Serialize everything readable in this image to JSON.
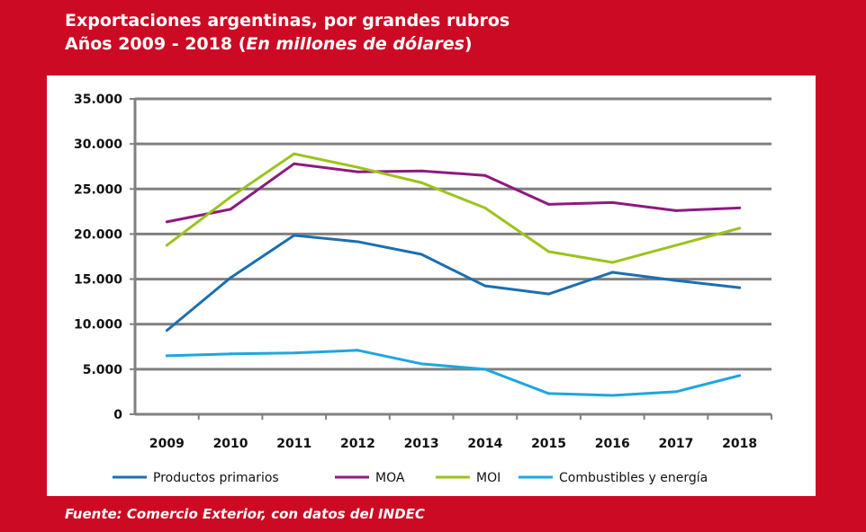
{
  "title_line1": "Exportaciones argentinas, por grandes rubros",
  "title_line2_prefix": "Años 2009 - 2018  (",
  "title_line2_italic": "En millones de dólares",
  "title_line2_suffix": ")",
  "source": "Fuente: Comercio Exterior, con datos del INDEC",
  "chart_data": {
    "type": "line",
    "title": "Exportaciones argentinas, por grandes rubros — Años 2009 - 2018 (En millones de dólares)",
    "categories": [
      "2009",
      "2010",
      "2011",
      "2012",
      "2013",
      "2014",
      "2015",
      "2016",
      "2017",
      "2018"
    ],
    "ylim": [
      0,
      35000
    ],
    "yticks": [
      0,
      5000,
      10000,
      15000,
      20000,
      25000,
      30000,
      35000
    ],
    "ytick_labels": [
      "0",
      "5.000",
      "10.000",
      "15.000",
      "20.000",
      "25.000",
      "30.000",
      "35.000"
    ],
    "grid": true,
    "legend_position": "bottom",
    "series": [
      {
        "name": "Productos primarios",
        "color": "#1c6fb0",
        "values": [
          9300,
          15150,
          19850,
          19150,
          17750,
          14250,
          13350,
          15750,
          14850,
          14050
        ]
      },
      {
        "name": "MOA",
        "color": "#8e1a7f",
        "values": [
          21350,
          22750,
          27800,
          26900,
          27000,
          26500,
          23300,
          23500,
          22600,
          22900
        ]
      },
      {
        "name": "MOI",
        "color": "#9cc31c",
        "values": [
          18750,
          24100,
          28900,
          27400,
          25700,
          22900,
          18050,
          16850,
          18750,
          20650
        ]
      },
      {
        "name": "Combustibles y energía",
        "color": "#1ea6e0",
        "values": [
          6500,
          6700,
          6800,
          7100,
          5600,
          5000,
          2300,
          2100,
          2500,
          4300
        ]
      }
    ]
  }
}
